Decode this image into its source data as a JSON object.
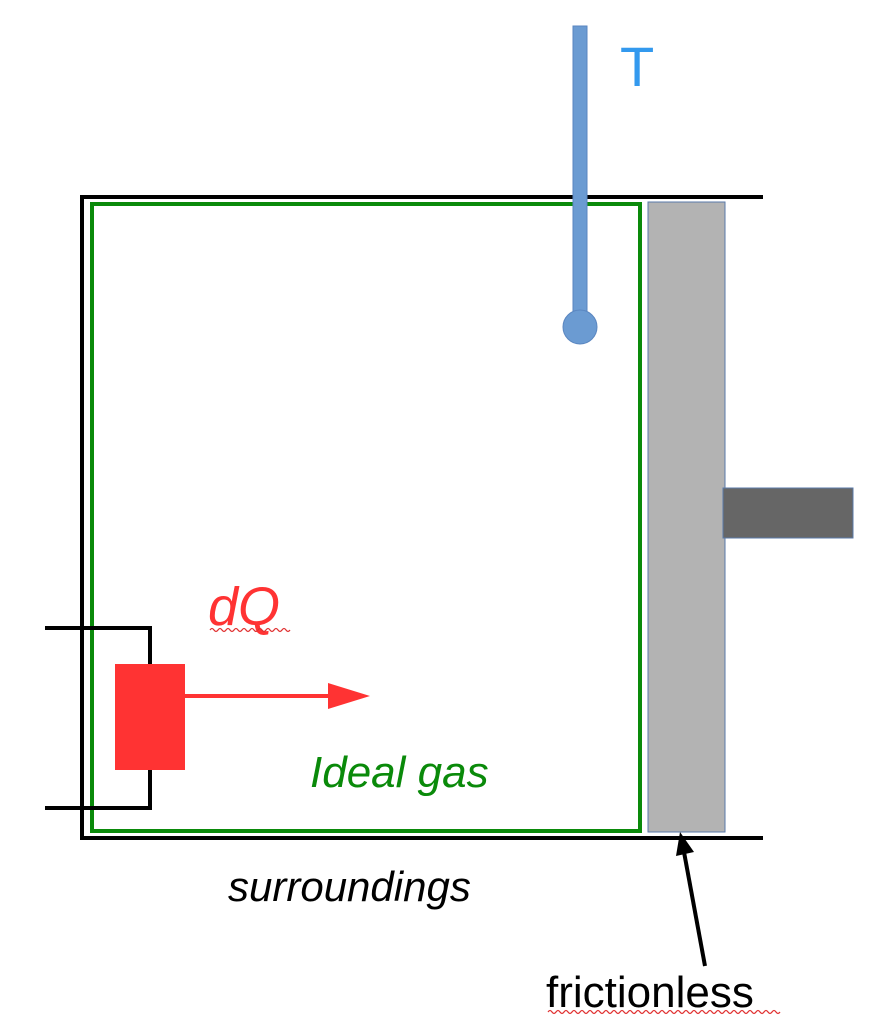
{
  "labels": {
    "temperature": "T",
    "heat": "dQ",
    "gas": "Ideal gas",
    "surroundings": "surroundings",
    "piston": "frictionless"
  },
  "colors": {
    "container": "#000000",
    "system_boundary": "#0a8a0a",
    "piston": "#b3b3b3",
    "piston_rod": "#666666",
    "thermometer": "#6b9bd2",
    "temperature_label": "#3399ee",
    "heater": "#ff3333",
    "heat_label": "#ff3333",
    "gas_label": "#0a8a0a",
    "text": "#000000"
  }
}
